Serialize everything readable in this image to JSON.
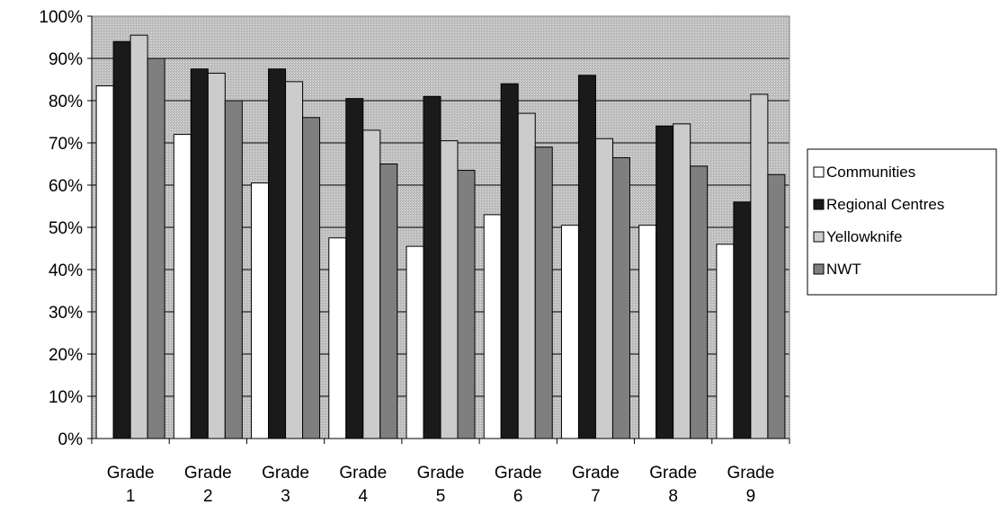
{
  "chart_data": {
    "type": "bar",
    "categories": [
      [
        "Grade",
        "1"
      ],
      [
        "Grade",
        "2"
      ],
      [
        "Grade",
        "3"
      ],
      [
        "Grade",
        "4"
      ],
      [
        "Grade",
        "5"
      ],
      [
        "Grade",
        "6"
      ],
      [
        "Grade",
        "7"
      ],
      [
        "Grade",
        "8"
      ],
      [
        "Grade",
        "9"
      ]
    ],
    "series": [
      {
        "name": "Communities",
        "color": "#ffffff",
        "values": [
          83.5,
          72,
          60.5,
          47.5,
          45.5,
          53,
          50.5,
          50.5,
          46
        ]
      },
      {
        "name": "Regional Centres",
        "color": "#1a1a1a",
        "values": [
          94,
          87.5,
          87.5,
          80.5,
          81,
          84,
          86,
          74,
          56
        ]
      },
      {
        "name": "Yellowknife",
        "color": "#cccccc",
        "values": [
          95.5,
          86.5,
          84.5,
          73,
          70.5,
          77,
          71,
          74.5,
          81.5
        ]
      },
      {
        "name": "NWT",
        "color": "#7f7f7f",
        "values": [
          90,
          80,
          76,
          65,
          63.5,
          69,
          66.5,
          64.5,
          62.5
        ]
      }
    ],
    "yticks": [
      "0%",
      "10%",
      "20%",
      "30%",
      "40%",
      "50%",
      "60%",
      "70%",
      "80%",
      "90%",
      "100%"
    ],
    "ylim": [
      0,
      100
    ],
    "grid": true,
    "legend_position": "right",
    "plot_background": "#c8c8c8",
    "xlabel": "",
    "ylabel": ""
  }
}
